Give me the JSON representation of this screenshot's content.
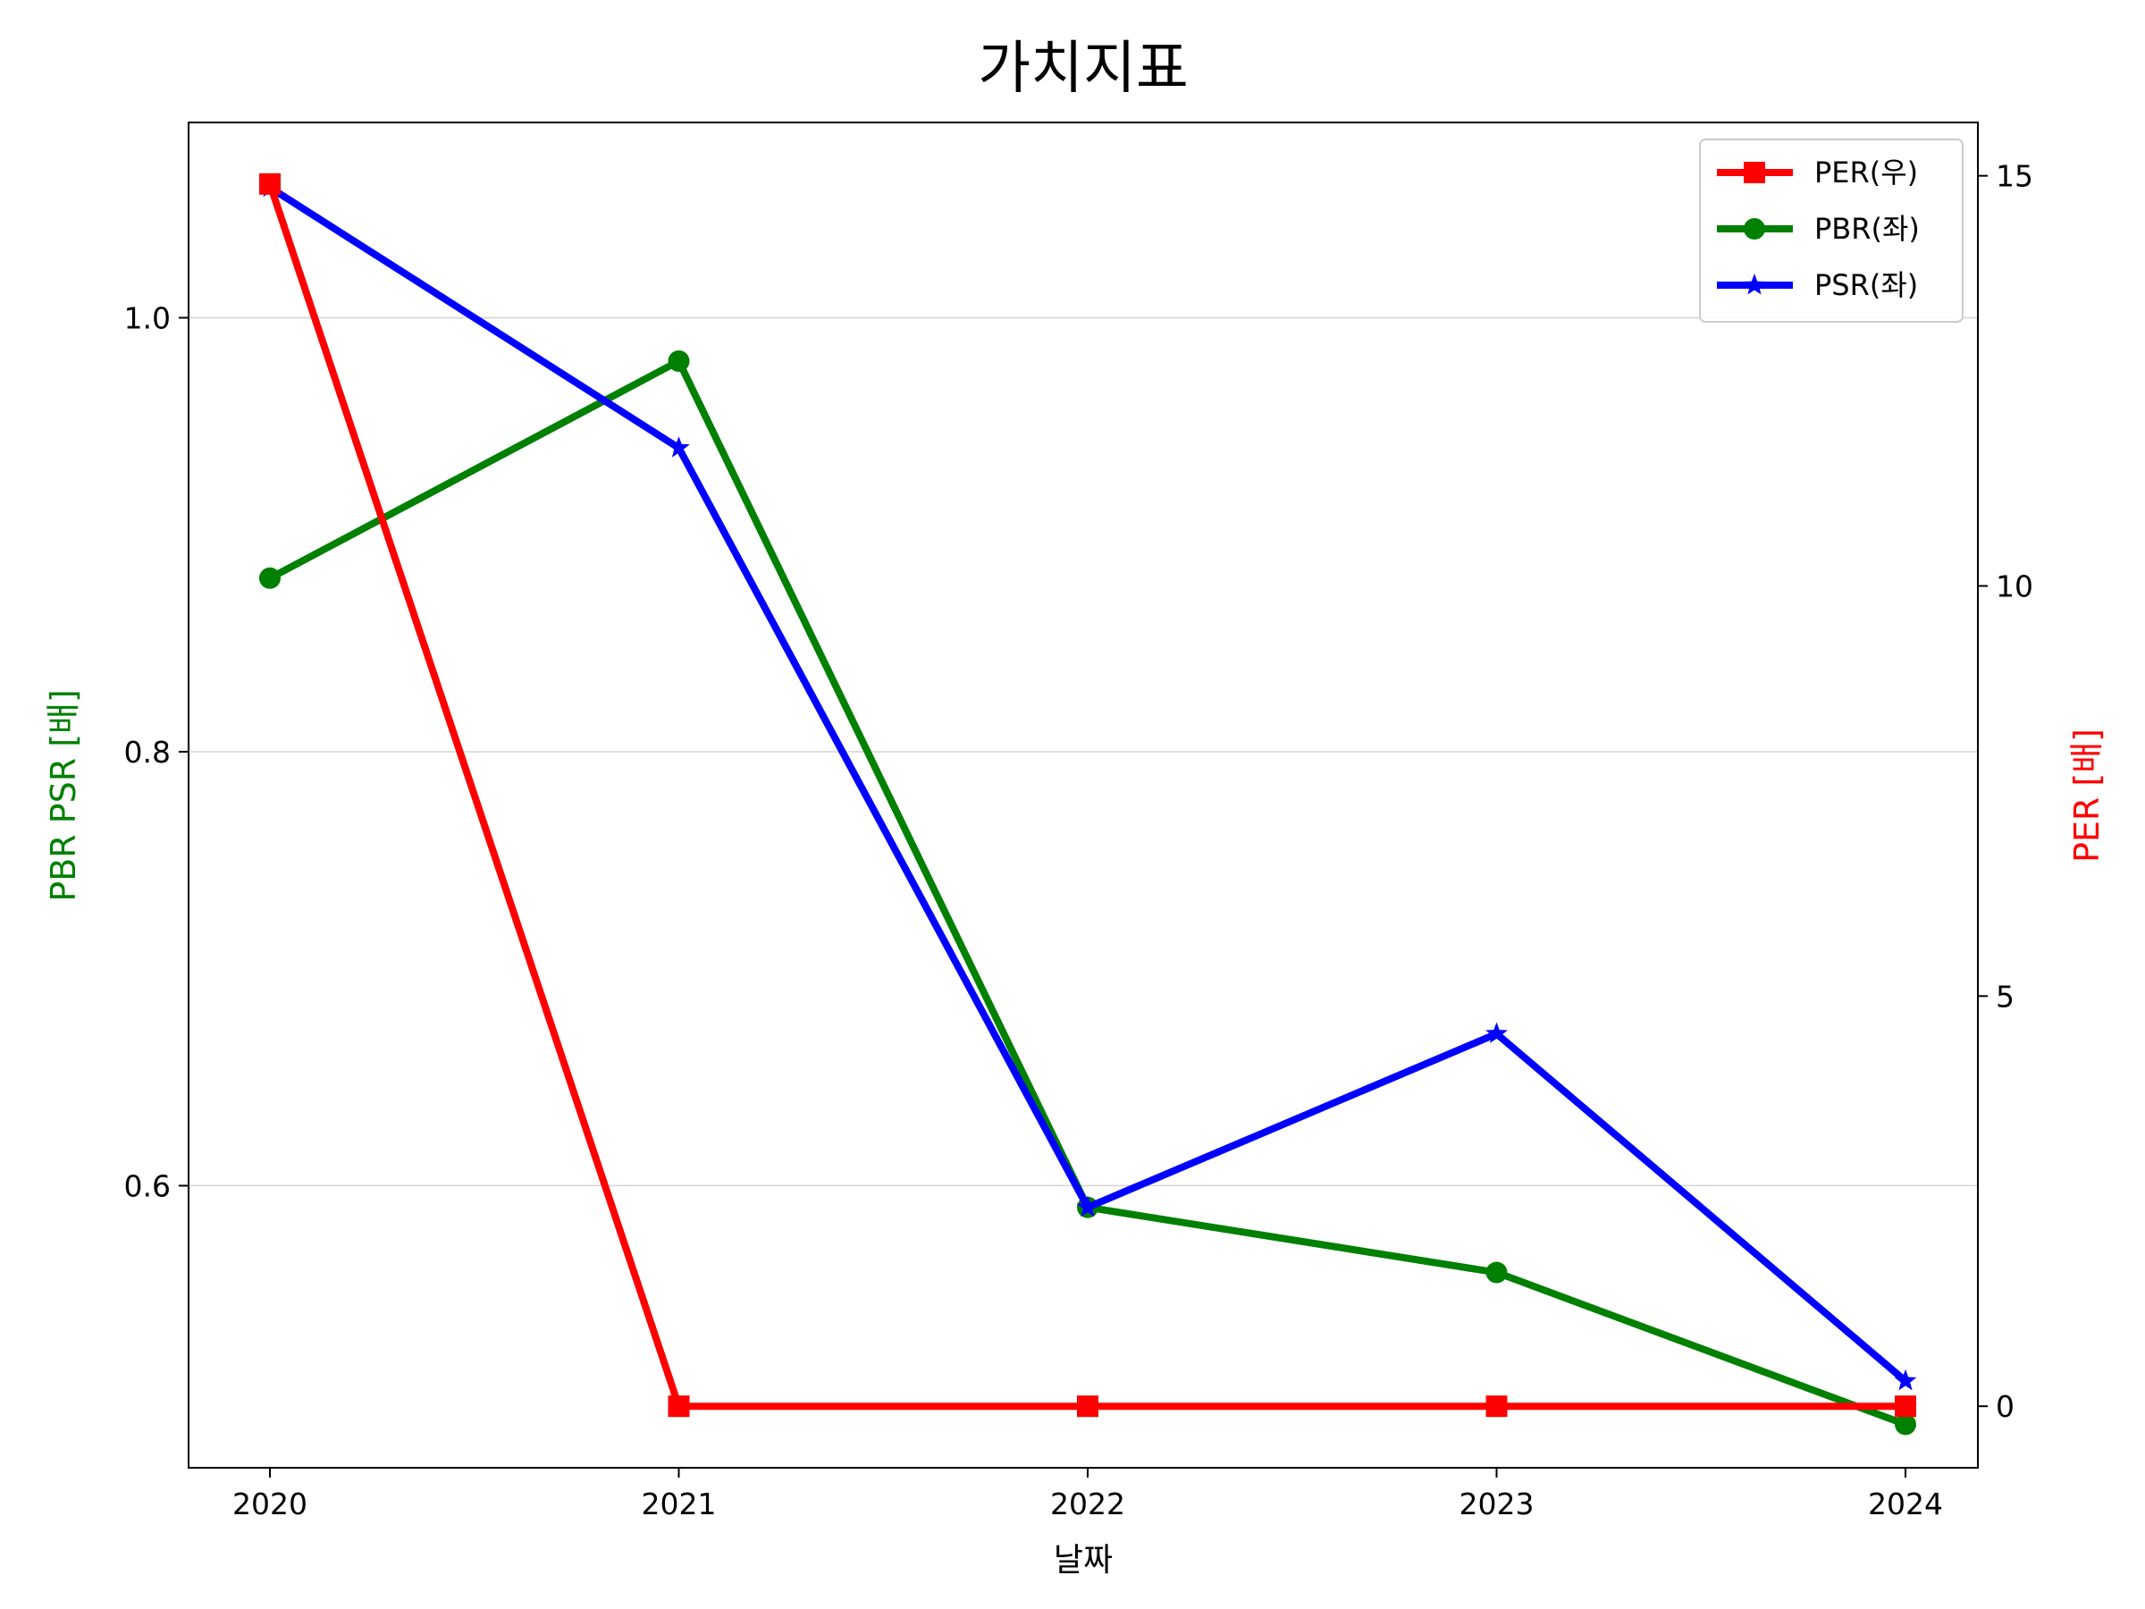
{
  "chart_data": {
    "type": "line",
    "title": "가치지표",
    "xlabel": "날짜",
    "ylabel_left": "PBR PSR [배]",
    "ylabel_right": "PER [배]",
    "ylabel_left_color": "#008000",
    "ylabel_right_color": "#ff0000",
    "x": [
      "2020",
      "2021",
      "2022",
      "2023",
      "2024"
    ],
    "ylim_left": [
      0.47,
      1.09
    ],
    "ylim_right": [
      -0.75,
      15.65
    ],
    "yticks_left": [
      "0.6",
      "0.8",
      "1.0"
    ],
    "yticks_right": [
      "0",
      "5",
      "10",
      "15"
    ],
    "grid": "horizontal",
    "legend_position": "top-right",
    "series": [
      {
        "name": "PER(우)",
        "axis": "right",
        "color": "#ff0000",
        "marker": "square",
        "values": [
          14.9,
          0.0,
          0.0,
          0.0,
          0.0
        ]
      },
      {
        "name": "PBR(좌)",
        "axis": "left",
        "color": "#008000",
        "marker": "circle",
        "values": [
          0.88,
          0.98,
          0.59,
          0.56,
          0.49
        ]
      },
      {
        "name": "PSR(좌)",
        "axis": "left",
        "color": "#0000ff",
        "marker": "star",
        "values": [
          1.06,
          0.94,
          0.59,
          0.67,
          0.51
        ]
      }
    ]
  }
}
